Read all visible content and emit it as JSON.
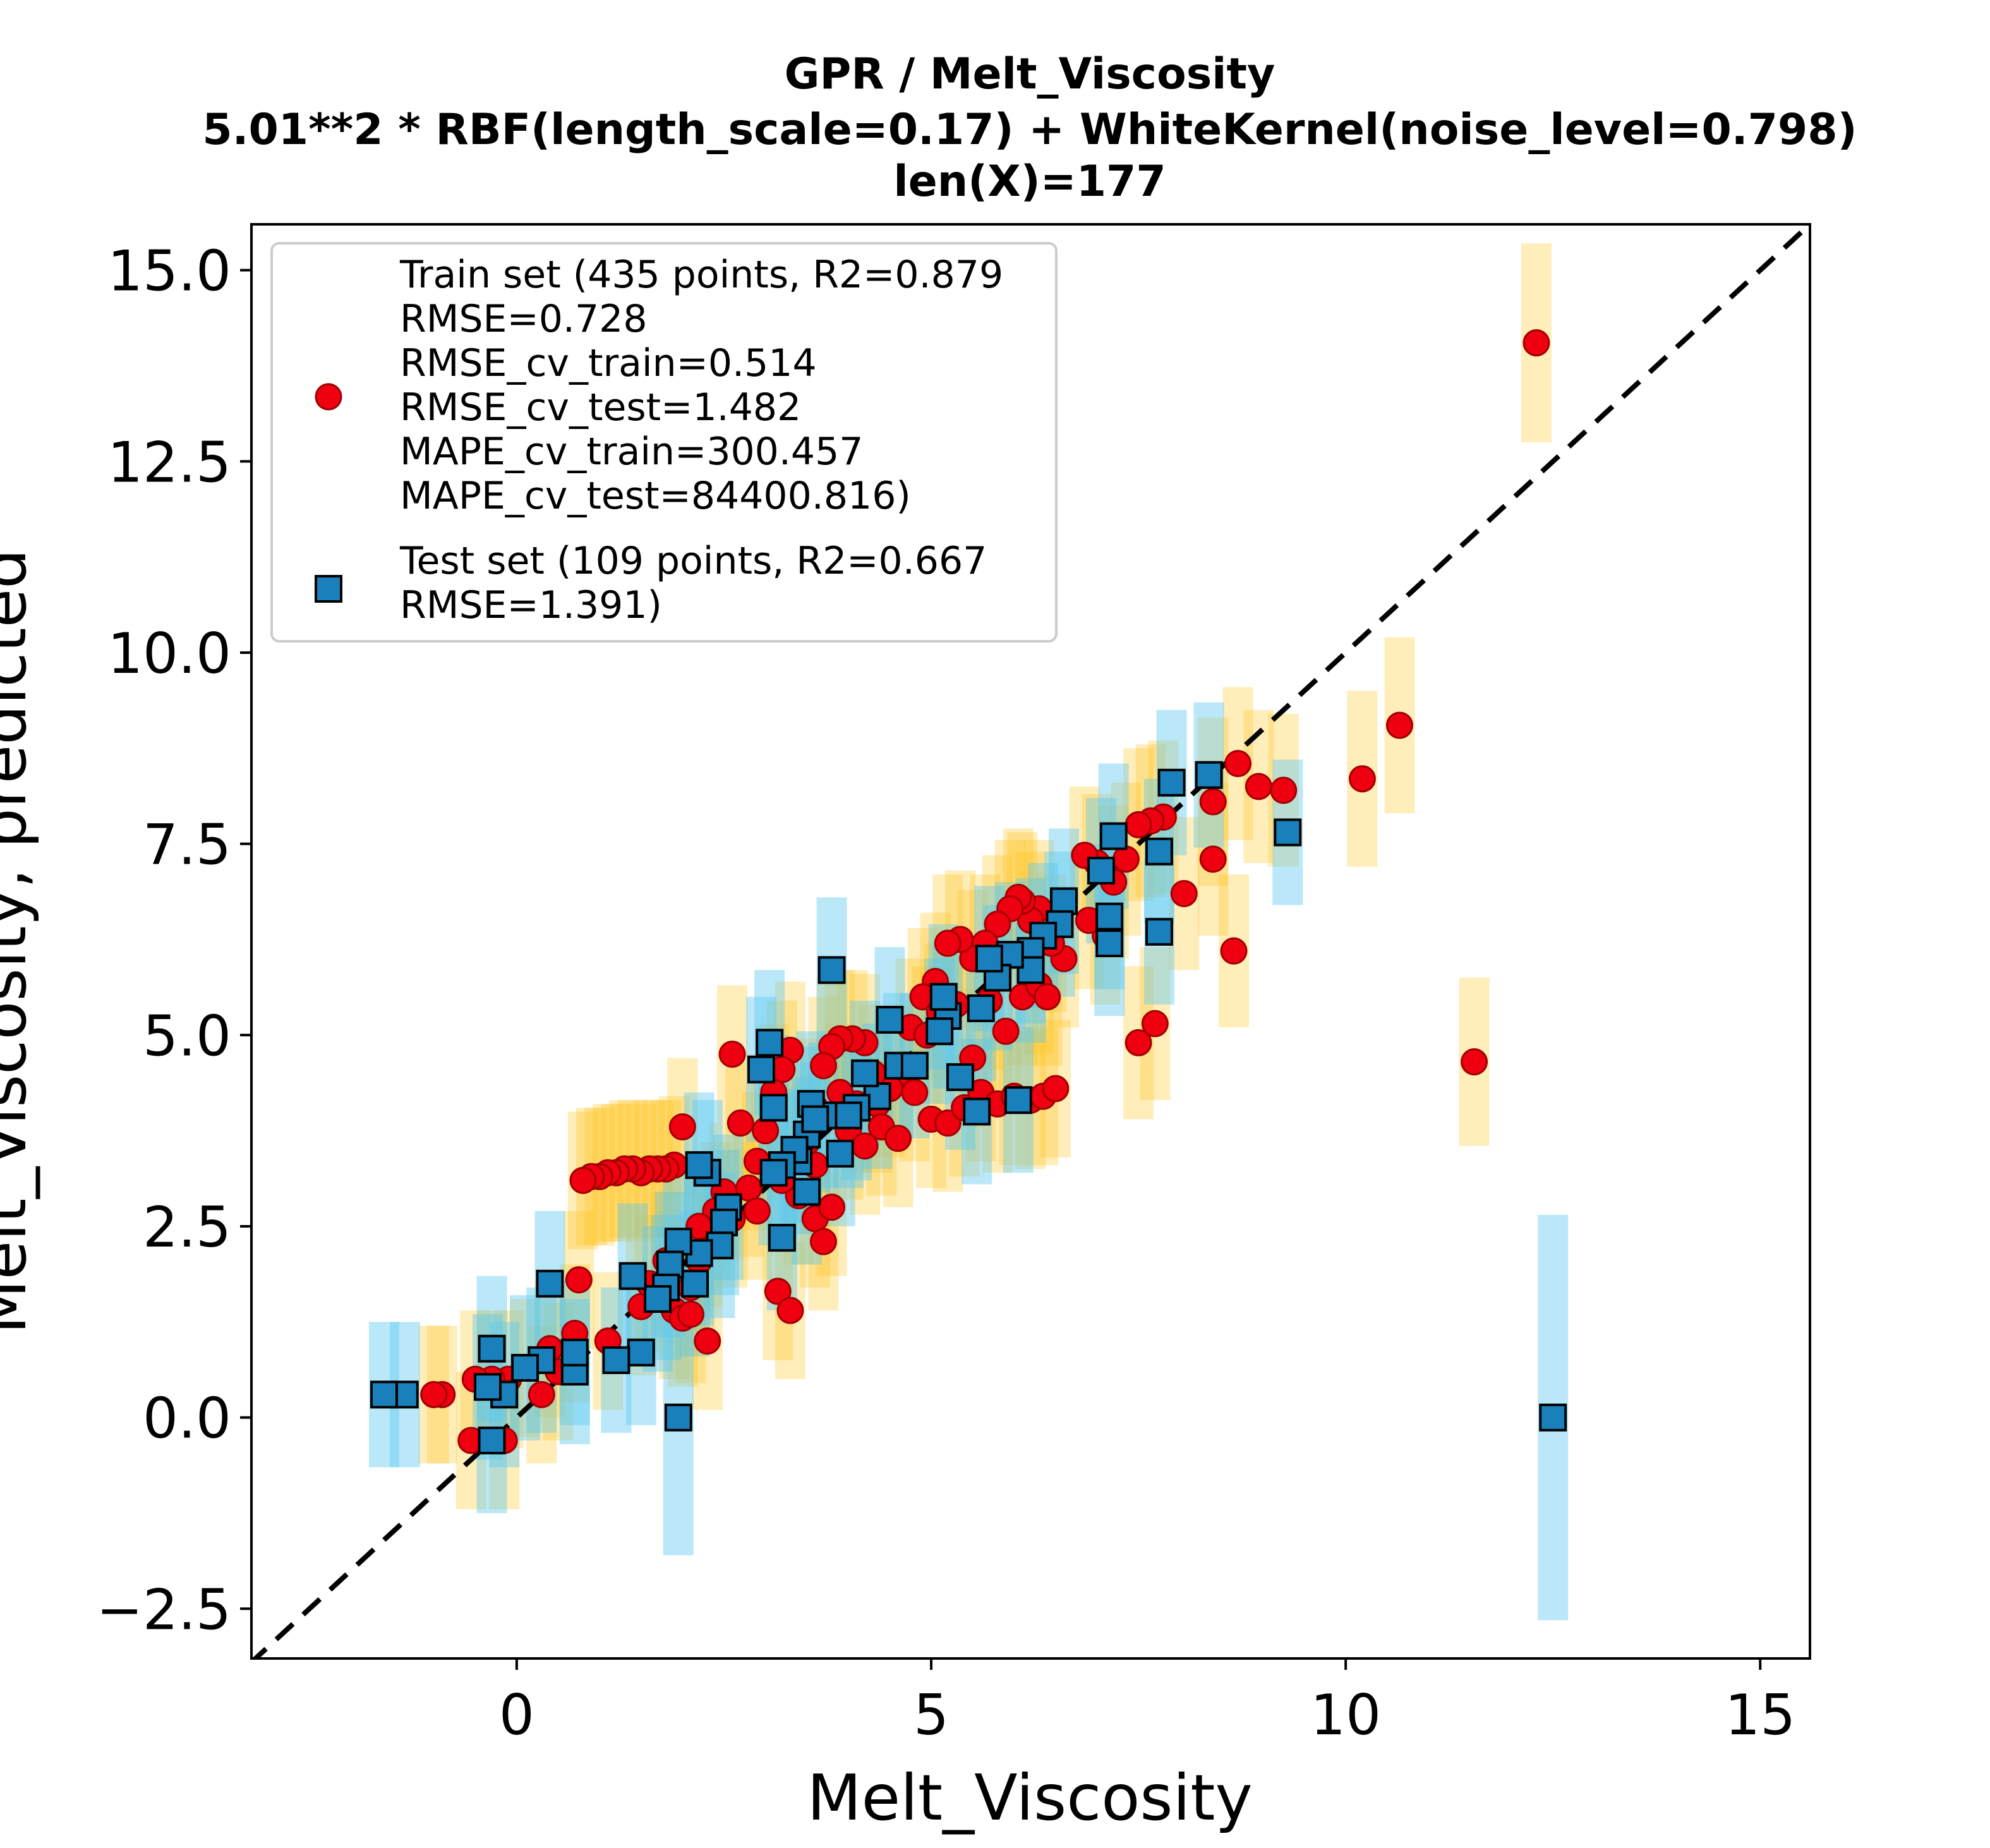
{
  "chart_data": {
    "type": "scatter",
    "title": "GPR / Melt_Viscosity",
    "subtitle_lines": [
      "5.01**2 * RBF(length_scale=0.17) + WhiteKernel(noise_level=0.798)",
      "len(X)=177"
    ],
    "xlabel": "Melt_Viscosity",
    "ylabel": "Melt_Viscosity, predicted",
    "xlim": [
      -3.2,
      15.6
    ],
    "ylim": [
      -3.15,
      15.6
    ],
    "xticks": [
      0,
      5,
      10,
      15
    ],
    "xtick_labels": [
      "0",
      "5",
      "10",
      "15"
    ],
    "yticks": [
      -2.5,
      0.0,
      2.5,
      5.0,
      7.5,
      10.0,
      12.5,
      15.0
    ],
    "ytick_labels": [
      "−2.5",
      "0.0",
      "2.5",
      "5.0",
      "7.5",
      "10.0",
      "12.5",
      "15.0"
    ],
    "grid": false,
    "legend_position": "upper-left",
    "identity_line": true,
    "colors": {
      "train_marker": "#ee0011",
      "train_edge": "#a00000",
      "train_error": "#ffc21a",
      "test_marker": "#1a80bb",
      "test_edge": "#000000",
      "test_error": "#5ac8f0",
      "identity": "#000000"
    },
    "series": [
      {
        "name": "Train set (435 points, R2=0.879",
        "legend_lines": [
          "Train set (435 points, R2=0.879",
          "RMSE=0.728",
          "RMSE_cv_train=0.514",
          "RMSE_cv_test=1.482",
          "MAPE_cv_train=300.457",
          "MAPE_cv_test=84400.816)"
        ],
        "marker": "circle",
        "points": [
          [
            12.3,
            14.05,
            1.3
          ],
          [
            10.65,
            9.05,
            1.15
          ],
          [
            10.2,
            8.35,
            1.15
          ],
          [
            11.55,
            4.65,
            1.1
          ],
          [
            9.25,
            8.2,
            1.0
          ],
          [
            8.95,
            8.25,
            1.0
          ],
          [
            8.7,
            8.55,
            1.0
          ],
          [
            8.65,
            6.1,
            1.0
          ],
          [
            8.4,
            8.05,
            1.1
          ],
          [
            8.4,
            7.3,
            1.0
          ],
          [
            8.05,
            6.85,
            1.0
          ],
          [
            7.8,
            7.85,
            1.0
          ],
          [
            7.65,
            7.8,
            1.0
          ],
          [
            7.5,
            7.75,
            1.0
          ],
          [
            7.35,
            7.3,
            1.0
          ],
          [
            7.2,
            7.0,
            1.0
          ],
          [
            7.0,
            7.25,
            0.9
          ],
          [
            6.85,
            7.35,
            0.9
          ],
          [
            7.7,
            5.15,
            1.0
          ],
          [
            7.5,
            4.9,
            1.0
          ],
          [
            7.1,
            6.3,
            0.9
          ],
          [
            6.9,
            6.5,
            0.9
          ],
          [
            6.6,
            6.0,
            0.9
          ],
          [
            6.45,
            6.2,
            0.9
          ],
          [
            6.3,
            6.65,
            0.9
          ],
          [
            6.2,
            6.5,
            0.9
          ],
          [
            6.1,
            6.75,
            0.9
          ],
          [
            6.05,
            6.8,
            0.9
          ],
          [
            5.95,
            6.65,
            0.9
          ],
          [
            5.8,
            6.45,
            0.9
          ],
          [
            5.65,
            6.2,
            0.9
          ],
          [
            5.5,
            6.0,
            0.9
          ],
          [
            5.35,
            6.25,
            0.9
          ],
          [
            5.2,
            6.2,
            0.9
          ],
          [
            5.05,
            5.7,
            0.9
          ],
          [
            4.9,
            5.5,
            0.9
          ],
          [
            4.75,
            5.1,
            0.9
          ],
          [
            4.6,
            4.5,
            0.9
          ],
          [
            4.5,
            4.3,
            0.9
          ],
          [
            4.35,
            4.1,
            0.9
          ],
          [
            4.2,
            4.9,
            0.9
          ],
          [
            4.05,
            4.95,
            0.9
          ],
          [
            3.9,
            4.95,
            0.9
          ],
          [
            3.8,
            4.85,
            0.9
          ],
          [
            3.7,
            4.6,
            0.9
          ],
          [
            3.6,
            4.05,
            0.9
          ],
          [
            3.5,
            3.6,
            0.9
          ],
          [
            3.4,
            3.45,
            0.9
          ],
          [
            3.3,
            4.8,
            0.9
          ],
          [
            3.2,
            4.55,
            0.9
          ],
          [
            3.1,
            4.25,
            0.9
          ],
          [
            3.0,
            3.75,
            0.9
          ],
          [
            2.9,
            3.35,
            0.9
          ],
          [
            2.8,
            3.0,
            0.9
          ],
          [
            2.7,
            3.85,
            0.9
          ],
          [
            2.6,
            4.75,
            0.9
          ],
          [
            2.5,
            2.95,
            0.9
          ],
          [
            2.4,
            2.7,
            0.9
          ],
          [
            2.3,
            2.35,
            0.9
          ],
          [
            2.2,
            2.05,
            0.9
          ],
          [
            2.1,
            1.7,
            0.9
          ],
          [
            2.0,
            3.8,
            0.9
          ],
          [
            1.9,
            3.3,
            0.9
          ],
          [
            1.8,
            3.25,
            0.9
          ],
          [
            1.7,
            3.25,
            0.9
          ],
          [
            1.6,
            3.25,
            0.9
          ],
          [
            1.5,
            3.2,
            0.9
          ],
          [
            1.4,
            3.25,
            0.9
          ],
          [
            1.3,
            3.25,
            0.9
          ],
          [
            1.2,
            3.2,
            0.9
          ],
          [
            1.1,
            3.2,
            0.9
          ],
          [
            1.0,
            3.15,
            0.9
          ],
          [
            0.9,
            3.15,
            0.9
          ],
          [
            0.8,
            3.1,
            0.9
          ],
          [
            0.75,
            1.8,
            0.9
          ],
          [
            0.7,
            1.1,
            0.9
          ],
          [
            0.5,
            0.6,
            0.9
          ],
          [
            0.3,
            0.3,
            0.9
          ],
          [
            0.1,
            0.65,
            0.9
          ],
          [
            -0.1,
            0.5,
            0.9
          ],
          [
            -0.3,
            0.5,
            0.9
          ],
          [
            -0.5,
            0.5,
            0.9
          ],
          [
            -0.55,
            -0.3,
            0.9
          ],
          [
            -0.15,
            -0.3,
            0.9
          ],
          [
            -0.9,
            0.3,
            0.9
          ],
          [
            -1.0,
            0.3,
            0.9
          ],
          [
            1.5,
            1.45,
            0.9
          ],
          [
            1.9,
            1.4,
            0.9
          ],
          [
            2.0,
            1.3,
            0.9
          ],
          [
            2.1,
            1.35,
            0.9
          ],
          [
            2.3,
            1.0,
            0.9
          ],
          [
            3.15,
            1.65,
            0.9
          ],
          [
            3.3,
            1.4,
            0.9
          ],
          [
            3.6,
            2.6,
            0.9
          ],
          [
            3.7,
            2.3,
            0.9
          ],
          [
            3.8,
            2.75,
            0.9
          ],
          [
            3.4,
            2.9,
            0.9
          ],
          [
            3.2,
            3.1,
            0.9
          ],
          [
            4.0,
            3.75,
            0.9
          ],
          [
            4.2,
            3.55,
            0.9
          ],
          [
            4.4,
            3.8,
            0.9
          ],
          [
            4.6,
            3.65,
            0.9
          ],
          [
            4.8,
            4.25,
            0.9
          ],
          [
            5.0,
            3.9,
            0.9
          ],
          [
            5.2,
            3.85,
            0.9
          ],
          [
            5.4,
            4.05,
            0.9
          ],
          [
            5.6,
            4.25,
            0.9
          ],
          [
            5.8,
            4.1,
            0.9
          ],
          [
            6.0,
            4.2,
            0.9
          ],
          [
            6.2,
            4.15,
            0.9
          ],
          [
            6.35,
            4.2,
            0.9
          ],
          [
            6.5,
            4.3,
            0.9
          ],
          [
            4.95,
            5.0,
            0.9
          ],
          [
            5.1,
            5.3,
            0.9
          ],
          [
            5.3,
            5.4,
            0.9
          ],
          [
            5.5,
            4.7,
            0.9
          ],
          [
            5.7,
            5.45,
            0.9
          ],
          [
            5.9,
            5.05,
            0.9
          ],
          [
            6.1,
            5.5,
            0.9
          ],
          [
            6.3,
            5.65,
            0.9
          ],
          [
            6.4,
            5.5,
            0.9
          ],
          [
            3.6,
            3.3,
            0.9
          ],
          [
            4.1,
            4.1,
            0.9
          ],
          [
            4.3,
            4.5,
            0.9
          ],
          [
            3.9,
            4.25,
            0.9
          ],
          [
            2.2,
            2.5,
            0.9
          ],
          [
            2.6,
            2.6,
            0.9
          ],
          [
            2.9,
            2.7,
            0.9
          ],
          [
            1.8,
            2.05,
            0.9
          ],
          [
            1.6,
            1.75,
            0.9
          ],
          [
            1.1,
            1.0,
            0.9
          ],
          [
            0.4,
            0.9,
            0.9
          ]
        ]
      },
      {
        "name": "Test set (109 points, R2=0.667",
        "legend_lines": [
          "Test set (109 points, R2=0.667",
          "RMSE=1.391)"
        ],
        "marker": "square",
        "points": [
          [
            12.5,
            0.0,
            2.65
          ],
          [
            1.95,
            0.0,
            1.8
          ],
          [
            9.3,
            7.65,
            0.95
          ],
          [
            8.35,
            8.4,
            0.95
          ],
          [
            7.9,
            8.3,
            0.95
          ],
          [
            7.75,
            7.4,
            0.95
          ],
          [
            7.75,
            6.35,
            0.95
          ],
          [
            7.2,
            7.6,
            0.95
          ],
          [
            7.15,
            6.55,
            0.95
          ],
          [
            7.15,
            6.2,
            0.95
          ],
          [
            7.05,
            7.15,
            0.95
          ],
          [
            6.6,
            6.75,
            0.95
          ],
          [
            6.55,
            6.45,
            0.95
          ],
          [
            6.35,
            6.3,
            0.95
          ],
          [
            6.2,
            6.1,
            0.95
          ],
          [
            6.2,
            5.85,
            0.95
          ],
          [
            6.05,
            4.15,
            0.95
          ],
          [
            5.95,
            6.05,
            0.95
          ],
          [
            5.8,
            5.75,
            0.95
          ],
          [
            5.7,
            6.0,
            0.95
          ],
          [
            5.6,
            5.35,
            0.95
          ],
          [
            5.55,
            4.0,
            0.95
          ],
          [
            5.35,
            4.45,
            0.95
          ],
          [
            5.2,
            5.25,
            0.95
          ],
          [
            5.15,
            5.5,
            0.95
          ],
          [
            5.1,
            5.05,
            0.95
          ],
          [
            4.6,
            4.6,
            0.95
          ],
          [
            4.5,
            5.2,
            0.95
          ],
          [
            4.35,
            4.2,
            0.95
          ],
          [
            4.2,
            4.5,
            0.95
          ],
          [
            4.1,
            4.05,
            0.95
          ],
          [
            4.0,
            3.95,
            0.95
          ],
          [
            3.9,
            3.45,
            0.95
          ],
          [
            3.8,
            5.85,
            0.95
          ],
          [
            3.7,
            3.95,
            0.95
          ],
          [
            3.55,
            4.1,
            0.95
          ],
          [
            3.5,
            3.7,
            0.95
          ],
          [
            3.4,
            3.35,
            0.95
          ],
          [
            3.35,
            3.5,
            0.95
          ],
          [
            3.2,
            3.3,
            0.95
          ],
          [
            3.1,
            3.2,
            0.95
          ],
          [
            3.1,
            4.05,
            0.95
          ],
          [
            3.05,
            4.9,
            0.95
          ],
          [
            2.95,
            4.55,
            0.95
          ],
          [
            3.2,
            2.35,
            0.95
          ],
          [
            3.5,
            2.95,
            0.95
          ],
          [
            2.55,
            2.75,
            0.95
          ],
          [
            2.5,
            2.55,
            0.95
          ],
          [
            2.45,
            2.25,
            0.95
          ],
          [
            2.3,
            3.2,
            0.95
          ],
          [
            2.2,
            3.3,
            0.95
          ],
          [
            2.2,
            2.15,
            0.95
          ],
          [
            2.15,
            1.75,
            0.95
          ],
          [
            1.95,
            2.3,
            0.95
          ],
          [
            1.85,
            2.0,
            0.95
          ],
          [
            1.8,
            1.7,
            0.95
          ],
          [
            1.7,
            1.55,
            0.95
          ],
          [
            1.4,
            1.85,
            0.95
          ],
          [
            1.5,
            0.85,
            0.95
          ],
          [
            1.2,
            0.75,
            0.95
          ],
          [
            0.7,
            0.6,
            0.95
          ],
          [
            0.7,
            0.85,
            0.95
          ],
          [
            0.4,
            1.75,
            0.95
          ],
          [
            0.3,
            0.75,
            0.95
          ],
          [
            0.1,
            0.65,
            0.95
          ],
          [
            -0.15,
            0.3,
            0.95
          ],
          [
            -0.3,
            0.9,
            0.95
          ],
          [
            -0.35,
            0.4,
            0.95
          ],
          [
            -0.3,
            -0.3,
            0.95
          ],
          [
            -1.35,
            0.3,
            0.95
          ],
          [
            -1.6,
            0.3,
            0.95
          ],
          [
            4.8,
            4.6,
            0.95
          ],
          [
            3.6,
            3.9,
            0.95
          ]
        ]
      }
    ]
  }
}
